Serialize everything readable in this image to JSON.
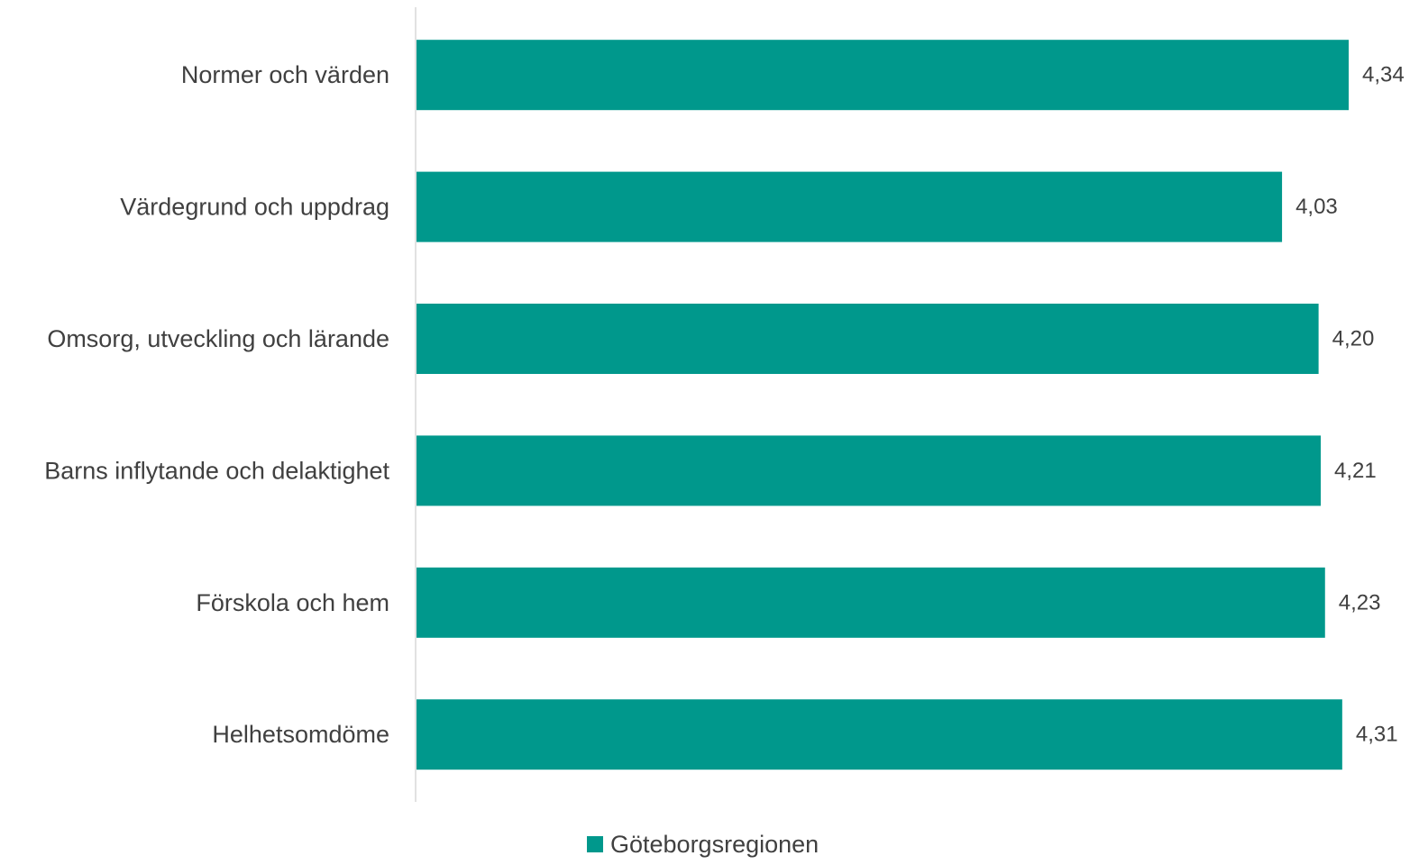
{
  "chart_data": {
    "type": "bar",
    "orientation": "horizontal",
    "categories": [
      "Normer och värden",
      "Värdegrund och uppdrag",
      "Omsorg, utveckling och lärande",
      "Barns inflytande och delaktighet",
      "Förskola och hem",
      "Helhetsomdöme"
    ],
    "series": [
      {
        "name": "Göteborgsregionen",
        "values": [
          4.34,
          4.03,
          4.2,
          4.21,
          4.23,
          4.31
        ],
        "value_labels": [
          "4,34",
          "4,03",
          "4,20",
          "4,21",
          "4,23",
          "4,31"
        ],
        "color": "#00988C"
      }
    ],
    "xlim": [
      0,
      4.34
    ],
    "grid": false,
    "axis_line_color": "#D9D9D9",
    "legend": {
      "position": "bottom",
      "label": "Göteborgsregionen"
    }
  }
}
